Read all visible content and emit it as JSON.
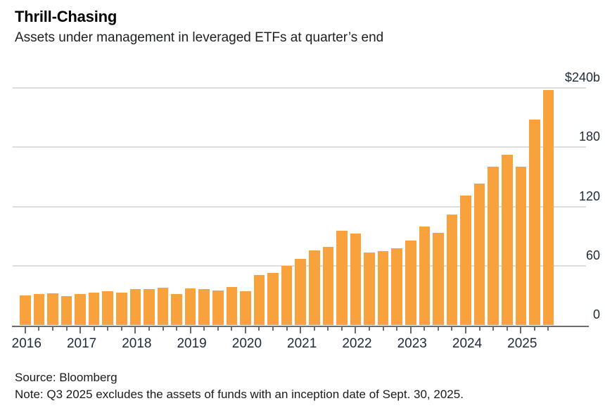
{
  "header": {
    "title": "Thrill-Chasing",
    "subtitle": "Assets under management in leveraged ETFs at quarter’s end"
  },
  "footer": {
    "source": "Source: Bloomberg",
    "note": "Note: Q3 2025 excludes the assets of funds with an inception date of Sept. 30, 2025."
  },
  "colors": {
    "bar": "#f7a23c",
    "gridline": "#dddddd",
    "axis": "#6b6c6e",
    "tick_label": "#1f2a38",
    "title": "#000000"
  },
  "chart_data": {
    "type": "bar",
    "title": "Thrill-Chasing",
    "subtitle": "Assets under management in leveraged ETFs at quarter’s end",
    "unit": "billions of U.S. dollars",
    "categories": [
      "2016 Q1",
      "2016 Q2",
      "2016 Q3",
      "2016 Q4",
      "2017 Q1",
      "2017 Q2",
      "2017 Q3",
      "2017 Q4",
      "2018 Q1",
      "2018 Q2",
      "2018 Q3",
      "2018 Q4",
      "2019 Q1",
      "2019 Q2",
      "2019 Q3",
      "2019 Q4",
      "2020 Q1",
      "2020 Q2",
      "2020 Q3",
      "2020 Q4",
      "2021 Q1",
      "2021 Q2",
      "2021 Q3",
      "2021 Q4",
      "2022 Q1",
      "2022 Q2",
      "2022 Q3",
      "2022 Q4",
      "2023 Q1",
      "2023 Q2",
      "2023 Q3",
      "2023 Q4",
      "2024 Q1",
      "2024 Q2",
      "2024 Q3",
      "2024 Q4",
      "2025 Q1",
      "2025 Q2",
      "2025 Q3"
    ],
    "values": [
      30,
      31,
      32,
      29.5,
      31.5,
      32.5,
      34,
      33,
      36,
      36.5,
      37.5,
      31.5,
      37,
      36,
      35,
      38.5,
      34,
      50.5,
      53,
      59.5,
      67,
      75.5,
      79,
      95.5,
      92.5,
      73.5,
      74.5,
      77.5,
      85.5,
      99.5,
      93.5,
      111.5,
      131,
      143.5,
      160.5,
      172.5,
      160,
      208,
      238
    ],
    "year_labels": [
      "2016",
      "2017",
      "2018",
      "2019",
      "2020",
      "2021",
      "2022",
      "2023",
      "2024",
      "2025"
    ],
    "yticks": [
      {
        "value": 0,
        "label": "0"
      },
      {
        "value": 60,
        "label": "60"
      },
      {
        "value": 120,
        "label": "120"
      },
      {
        "value": 180,
        "label": "180"
      },
      {
        "value": 240,
        "label": "$240b"
      }
    ],
    "ylim": [
      0,
      240
    ],
    "xlabel": "",
    "ylabel": "",
    "grid": true,
    "legend": false
  }
}
